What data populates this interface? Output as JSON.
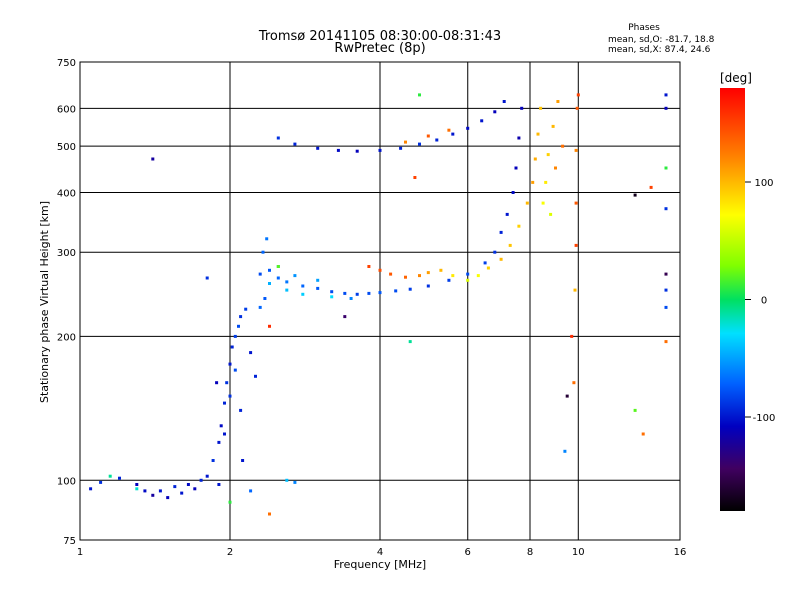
{
  "chart_data": {
    "type": "scatter",
    "title": "Tromsø 20141105 08:30:00-08:31:43",
    "subtitle": "RwPretec (8p)",
    "xlabel": "Frequency [MHz]",
    "ylabel": "Stationary phase Virtual Height [km]",
    "x_scale": "log",
    "y_scale": "log",
    "xlim": [
      1,
      16
    ],
    "ylim": [
      75,
      750
    ],
    "x_ticks": [
      1,
      2,
      4,
      6,
      8,
      10,
      16
    ],
    "x_tick_labels": [
      "1",
      "2",
      "4",
      "6",
      "8",
      "10",
      "16"
    ],
    "y_ticks": [
      75,
      100,
      200,
      300,
      400,
      500,
      600,
      750
    ],
    "y_tick_labels": [
      "75",
      "100",
      "200",
      "300",
      "400",
      "500",
      "600",
      "750"
    ],
    "grid": true,
    "stats": {
      "heading": "Phases",
      "line_o": "mean, sd,O: -81.7, 18.8",
      "line_x": "mean, sd,X:  87.4, 24.6"
    },
    "colorbar": {
      "label": "[deg]",
      "range": [
        -180,
        180
      ],
      "ticks": [
        100,
        0,
        -100
      ],
      "tick_labels": [
        "100",
        "0",
        "-100"
      ]
    },
    "series": [
      {
        "points": [
          [
            1.05,
            96,
            -100
          ],
          [
            1.1,
            99,
            -90
          ],
          [
            1.2,
            101,
            -95
          ],
          [
            1.3,
            98,
            -110
          ],
          [
            1.35,
            95,
            -105
          ],
          [
            1.4,
            93,
            -120
          ],
          [
            1.45,
            95,
            -100
          ],
          [
            1.5,
            92,
            -110
          ],
          [
            1.55,
            97,
            -95
          ],
          [
            1.6,
            94,
            -100
          ],
          [
            1.65,
            98,
            -105
          ],
          [
            1.7,
            96,
            -110
          ],
          [
            1.75,
            100,
            -95
          ],
          [
            1.8,
            102,
            -100
          ],
          [
            1.85,
            110,
            -90
          ],
          [
            1.9,
            120,
            -100
          ],
          [
            1.92,
            130,
            -105
          ],
          [
            1.95,
            145,
            -95
          ],
          [
            1.97,
            160,
            -90
          ],
          [
            2.0,
            175,
            -100
          ],
          [
            2.02,
            190,
            -95
          ],
          [
            2.05,
            200,
            -85
          ],
          [
            2.08,
            210,
            -80
          ],
          [
            2.1,
            220,
            -90
          ],
          [
            2.15,
            228,
            -85
          ],
          [
            2.2,
            185,
            -100
          ],
          [
            2.25,
            165,
            -95
          ],
          [
            2.3,
            230,
            -70
          ],
          [
            2.35,
            240,
            -75
          ],
          [
            1.88,
            160,
            -110
          ],
          [
            1.95,
            125,
            -100
          ],
          [
            2.0,
            150,
            -90
          ],
          [
            2.05,
            170,
            -80
          ],
          [
            2.1,
            140,
            -95
          ],
          [
            2.12,
            110,
            -100
          ],
          [
            2.3,
            270,
            -80
          ],
          [
            2.33,
            300,
            -70
          ],
          [
            2.37,
            320,
            -65
          ],
          [
            2.4,
            275,
            -75
          ],
          [
            2.5,
            265,
            -70
          ],
          [
            2.6,
            260,
            -65
          ],
          [
            2.8,
            255,
            -70
          ],
          [
            3.0,
            252,
            -75
          ],
          [
            3.2,
            248,
            -80
          ],
          [
            3.4,
            246,
            -80
          ],
          [
            3.6,
            245,
            -85
          ],
          [
            3.8,
            246,
            -80
          ],
          [
            4.0,
            247,
            -75
          ],
          [
            4.3,
            249,
            -80
          ],
          [
            4.6,
            251,
            -85
          ],
          [
            5.0,
            255,
            -90
          ],
          [
            5.5,
            262,
            -85
          ],
          [
            6.0,
            270,
            -80
          ],
          [
            6.5,
            285,
            -85
          ],
          [
            6.8,
            300,
            -90
          ],
          [
            7.0,
            330,
            -95
          ],
          [
            7.2,
            360,
            -100
          ],
          [
            7.4,
            400,
            -105
          ],
          [
            7.5,
            450,
            -110
          ],
          [
            7.6,
            520,
            -115
          ],
          [
            7.7,
            600,
            -110
          ],
          [
            2.5,
            280,
            -60
          ],
          [
            2.7,
            268,
            -55
          ],
          [
            3.0,
            262,
            -50
          ],
          [
            2.6,
            250,
            -40
          ],
          [
            2.8,
            245,
            -35
          ],
          [
            3.2,
            242,
            -30
          ],
          [
            2.4,
            258,
            -45
          ],
          [
            3.5,
            240,
            -60
          ],
          [
            3.8,
            280,
            150
          ],
          [
            4.0,
            275,
            145
          ],
          [
            4.2,
            270,
            140
          ],
          [
            4.5,
            266,
            135
          ],
          [
            4.8,
            268,
            120
          ],
          [
            5.0,
            272,
            110
          ],
          [
            5.3,
            275,
            100
          ],
          [
            5.6,
            268,
            80
          ],
          [
            6.0,
            262,
            60
          ],
          [
            6.3,
            268,
            70
          ],
          [
            6.6,
            278,
            90
          ],
          [
            7.0,
            290,
            100
          ],
          [
            7.3,
            310,
            95
          ],
          [
            7.6,
            340,
            90
          ],
          [
            7.9,
            380,
            100
          ],
          [
            8.1,
            420,
            110
          ],
          [
            8.2,
            470,
            105
          ],
          [
            8.3,
            530,
            100
          ],
          [
            8.4,
            600,
            95
          ],
          [
            8.6,
            420,
            80
          ],
          [
            8.7,
            480,
            90
          ],
          [
            8.9,
            550,
            100
          ],
          [
            9.1,
            620,
            110
          ],
          [
            8.5,
            380,
            70
          ],
          [
            8.8,
            360,
            60
          ],
          [
            9.0,
            450,
            120
          ],
          [
            9.3,
            500,
            130
          ],
          [
            2.5,
            520,
            -90
          ],
          [
            2.7,
            505,
            -95
          ],
          [
            3.0,
            495,
            -100
          ],
          [
            3.3,
            490,
            -105
          ],
          [
            3.6,
            488,
            -110
          ],
          [
            4.0,
            490,
            -100
          ],
          [
            4.4,
            495,
            -95
          ],
          [
            4.8,
            505,
            -90
          ],
          [
            5.2,
            515,
            -95
          ],
          [
            5.6,
            530,
            -100
          ],
          [
            6.0,
            545,
            -105
          ],
          [
            6.4,
            565,
            -100
          ],
          [
            6.8,
            590,
            -110
          ],
          [
            7.1,
            620,
            -100
          ],
          [
            4.5,
            510,
            120
          ],
          [
            5.0,
            525,
            140
          ],
          [
            5.5,
            540,
            130
          ],
          [
            1.4,
            470,
            -120
          ],
          [
            1.8,
            265,
            -90
          ],
          [
            2.4,
            210,
            160
          ],
          [
            2.5,
            280,
            20
          ],
          [
            3.4,
            220,
            -140
          ],
          [
            4.7,
            430,
            150
          ],
          [
            4.6,
            195,
            -10
          ],
          [
            4.8,
            640,
            10
          ],
          [
            9.9,
            490,
            120
          ],
          [
            9.95,
            600,
            140
          ],
          [
            10.0,
            640,
            150
          ],
          [
            9.7,
            200,
            160
          ],
          [
            9.5,
            150,
            -160
          ],
          [
            9.8,
            160,
            130
          ],
          [
            9.4,
            115,
            -60
          ],
          [
            13,
            395,
            -170
          ],
          [
            14,
            410,
            150
          ],
          [
            15,
            640,
            -100
          ],
          [
            15,
            600,
            -110
          ],
          [
            15,
            450,
            10
          ],
          [
            15,
            370,
            -90
          ],
          [
            15,
            270,
            -150
          ],
          [
            15,
            250,
            -90
          ],
          [
            15,
            230,
            -80
          ],
          [
            15,
            195,
            130
          ],
          [
            13.5,
            125,
            130
          ],
          [
            13,
            140,
            20
          ],
          [
            9.9,
            310,
            150
          ],
          [
            9.9,
            380,
            140
          ],
          [
            9.85,
            250,
            100
          ],
          [
            2.4,
            85,
            130
          ],
          [
            2.2,
            95,
            -70
          ],
          [
            2.6,
            100,
            -40
          ],
          [
            2.7,
            99,
            -60
          ],
          [
            1.3,
            96,
            -20
          ],
          [
            1.15,
            102,
            -10
          ],
          [
            1.9,
            98,
            -100
          ],
          [
            2.0,
            90,
            10
          ]
        ]
      }
    ]
  }
}
